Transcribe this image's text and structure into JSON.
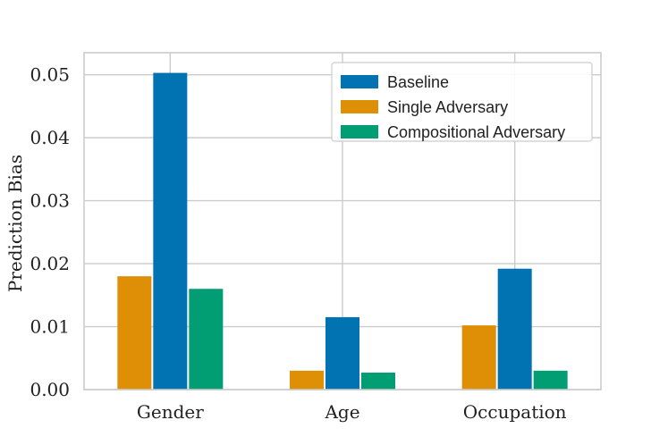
{
  "chart_data": {
    "type": "bar",
    "title": "",
    "xlabel": "",
    "ylabel": "Prediction Bias",
    "categories": [
      "Gender",
      "Age",
      "Occupation"
    ],
    "series": [
      {
        "name": "Single Adversary",
        "color": "#de8f05",
        "values": [
          0.018,
          0.003,
          0.0102
        ]
      },
      {
        "name": "Baseline",
        "color": "#0173b2",
        "values": [
          0.0503,
          0.0115,
          0.0192
        ]
      },
      {
        "name": "Compositional Adversary",
        "color": "#029e73",
        "values": [
          0.016,
          0.0027,
          0.003
        ]
      }
    ],
    "legend_order": [
      "Baseline",
      "Single Adversary",
      "Compositional Adversary"
    ],
    "ylim": [
      0,
      0.0535
    ],
    "yticks": [
      "0.00",
      "0.01",
      "0.02",
      "0.03",
      "0.04",
      "0.05"
    ],
    "ytick_values": [
      0,
      0.01,
      0.02,
      0.03,
      0.04,
      0.05
    ],
    "grid": true,
    "legend_position": "top-right"
  }
}
